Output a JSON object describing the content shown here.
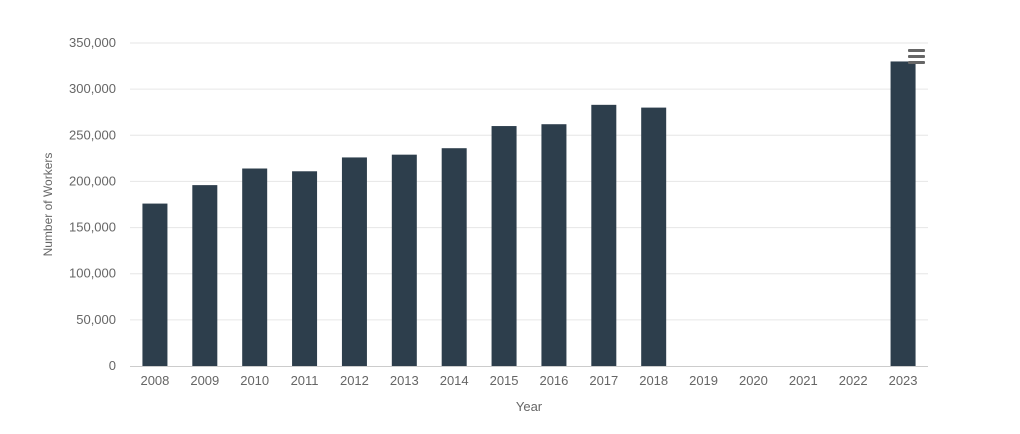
{
  "chart_data": {
    "type": "bar",
    "title": "",
    "xlabel": "Year",
    "ylabel": "Number of Workers",
    "categories": [
      "2008",
      "2009",
      "2010",
      "2011",
      "2012",
      "2013",
      "2014",
      "2015",
      "2016",
      "2017",
      "2018",
      "2019",
      "2020",
      "2021",
      "2022",
      "2023"
    ],
    "values": [
      176000,
      196000,
      214000,
      211000,
      226000,
      229000,
      236000,
      260000,
      262000,
      283000,
      280000,
      null,
      null,
      null,
      null,
      330000
    ],
    "y_ticks": [
      "0",
      "50,000",
      "100,000",
      "150,000",
      "200,000",
      "250,000",
      "300,000",
      "350,000"
    ],
    "ylim": [
      0,
      350000
    ],
    "grid": true,
    "bar_color": "#2d3e4c",
    "grid_color": "#e6e6e6",
    "text_color": "#666666"
  },
  "menu": {
    "icon": "hamburger-menu-icon"
  }
}
